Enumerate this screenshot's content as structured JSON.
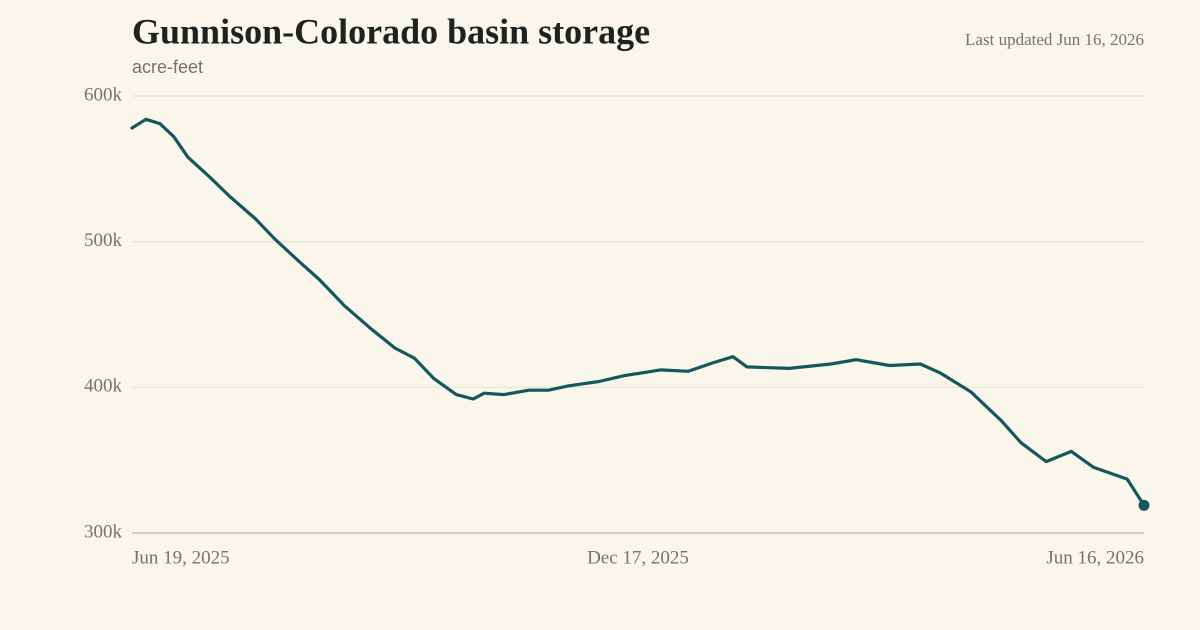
{
  "chart_data": {
    "type": "line",
    "title": "Gunnison-Colorado basin storage",
    "subtitle": "acre-feet",
    "annotation": "Last updated Jun 16, 2026",
    "x": [
      "2025-06-19",
      "2025-06-24",
      "2025-06-29",
      "2025-07-04",
      "2025-07-09",
      "2025-07-17",
      "2025-07-24",
      "2025-08-02",
      "2025-08-09",
      "2025-08-18",
      "2025-08-25",
      "2025-09-03",
      "2025-09-12",
      "2025-09-21",
      "2025-09-28",
      "2025-10-05",
      "2025-10-13",
      "2025-10-19",
      "2025-10-23",
      "2025-10-30",
      "2025-11-08",
      "2025-11-15",
      "2025-11-22",
      "2025-12-03",
      "2025-12-12",
      "2025-12-25",
      "2026-01-04",
      "2026-01-13",
      "2026-01-20",
      "2026-01-25",
      "2026-02-09",
      "2026-02-24",
      "2026-03-05",
      "2026-03-17",
      "2026-03-28",
      "2026-04-04",
      "2026-04-15",
      "2026-04-26",
      "2026-05-03",
      "2026-05-12",
      "2026-05-21",
      "2026-05-29",
      "2026-06-10",
      "2026-06-16"
    ],
    "series": [
      {
        "name": "Storage",
        "color": "#14575d",
        "values": [
          578000,
          584000,
          581000,
          572000,
          558000,
          544000,
          531000,
          516000,
          502000,
          486000,
          474000,
          456000,
          441000,
          427000,
          420000,
          406000,
          395000,
          392000,
          396000,
          395000,
          398000,
          398000,
          401000,
          404000,
          408000,
          412000,
          411000,
          417000,
          421000,
          414000,
          413000,
          416000,
          419000,
          415000,
          416000,
          410000,
          397000,
          377000,
          362000,
          349000,
          356000,
          345000,
          337000,
          319000
        ]
      }
    ],
    "xlim": [
      "2025-06-19",
      "2026-06-16"
    ],
    "xticks": [
      {
        "value": "2025-06-19",
        "label": "Jun 19, 2025"
      },
      {
        "value": "2025-12-17",
        "label": "Dec 17, 2025"
      },
      {
        "value": "2026-06-16",
        "label": "Jun 16, 2026"
      }
    ],
    "ylim": [
      300000,
      600000
    ],
    "yticks": [
      {
        "value": 300000,
        "label": "300k"
      },
      {
        "value": 400000,
        "label": "400k"
      },
      {
        "value": 500000,
        "label": "500k"
      },
      {
        "value": 600000,
        "label": "600k"
      }
    ],
    "grid": true
  }
}
